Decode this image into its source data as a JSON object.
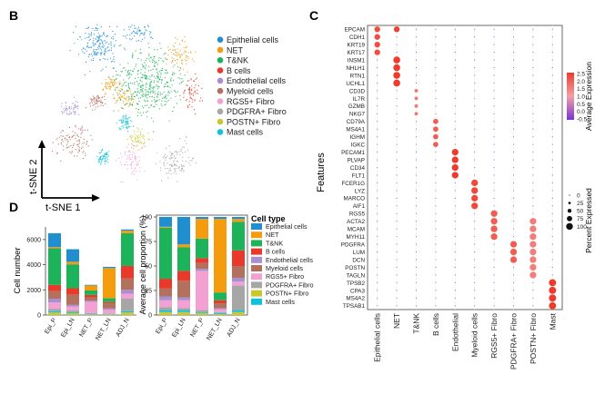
{
  "panel_labels": {
    "b": "B",
    "c": "C",
    "d": "D"
  },
  "colors": {
    "Epithelial cells": "#1f8fd0",
    "NET": "#f59b0e",
    "T&NK": "#1db35a",
    "B cells": "#e8392a",
    "Endothelial cells": "#a88fd1",
    "Myeloid cells": "#b3705c",
    "RGS5+ Fibro": "#f3a0d2",
    "PDGFRA+ Fibro": "#a6a6a6",
    "POSTN+ Fibro": "#c9c92e",
    "Mast cells": "#13c2da",
    "gradient_high": "#f03a2b",
    "gradient_low": "#7a33d6"
  },
  "chart_data": [
    {
      "type": "scatter",
      "panel": "B",
      "xlabel": "t-SNE 1",
      "ylabel": "t-SNE 2",
      "legend": [
        "Epithelial cells",
        "NET",
        "T&NK",
        "B cells",
        "Endothelial cells",
        "Myeloid cells",
        "RGS5+ Fibro",
        "PDGFRA+ Fibro",
        "POSTN+ Fibro",
        "Mast cells"
      ],
      "clusters": [
        {
          "label": "Epithelial cells",
          "cx": 0.3,
          "cy": 0.9,
          "sx": 0.09,
          "sy": 0.1
        },
        {
          "label": "Epithelial cells",
          "cx": 0.55,
          "cy": 0.97,
          "sx": 0.05,
          "sy": 0.04
        },
        {
          "label": "NET",
          "cx": 0.8,
          "cy": 0.84,
          "sx": 0.06,
          "sy": 0.06
        },
        {
          "label": "NET",
          "cx": 0.38,
          "cy": 0.66,
          "sx": 0.04,
          "sy": 0.03
        },
        {
          "label": "NET",
          "cx": 0.45,
          "cy": 0.58,
          "sx": 0.05,
          "sy": 0.04
        },
        {
          "label": "T&NK",
          "cx": 0.6,
          "cy": 0.66,
          "sx": 0.14,
          "sy": 0.14
        },
        {
          "label": "B cells",
          "cx": 0.87,
          "cy": 0.62,
          "sx": 0.04,
          "sy": 0.07
        },
        {
          "label": "Endothelial cells",
          "cx": 0.12,
          "cy": 0.52,
          "sx": 0.04,
          "sy": 0.04
        },
        {
          "label": "Myeloid cells",
          "cx": 0.13,
          "cy": 0.32,
          "sx": 0.07,
          "sy": 0.07
        },
        {
          "label": "Myeloid cells",
          "cx": 0.28,
          "cy": 0.56,
          "sx": 0.04,
          "sy": 0.03
        },
        {
          "label": "RGS5+ Fibro",
          "cx": 0.5,
          "cy": 0.22,
          "sx": 0.05,
          "sy": 0.07
        },
        {
          "label": "PDGFRA+ Fibro",
          "cx": 0.77,
          "cy": 0.2,
          "sx": 0.07,
          "sy": 0.07
        },
        {
          "label": "POSTN+ Fibro",
          "cx": 0.55,
          "cy": 0.34,
          "sx": 0.05,
          "sy": 0.04
        },
        {
          "label": "Mast cells",
          "cx": 0.33,
          "cy": 0.23,
          "sx": 0.03,
          "sy": 0.03
        },
        {
          "label": "Mast cells",
          "cx": 0.46,
          "cy": 0.43,
          "sx": 0.03,
          "sy": 0.03
        }
      ]
    },
    {
      "type": "dot",
      "panel": "C",
      "ylabel": "Features",
      "features": [
        "EPCAM",
        "CDH1",
        "KRT19",
        "KRT17",
        "INSM1",
        "NHLH1",
        "RTN1",
        "UCHL1",
        "CD3D",
        "IL7R",
        "GZMB",
        "NKG7",
        "CD79A",
        "MS4A1",
        "IGHM",
        "IGKC",
        "PECAM1",
        "PLVAP",
        "CD34",
        "FLT1",
        "FCER1G",
        "LYZ",
        "MARCO",
        "AIF1",
        "RGS5",
        "ACTA2",
        "MCAM",
        "MYH11",
        "PDGFRA",
        "LUM",
        "DCN",
        "POSTN",
        "TAGLN",
        "TPSB2",
        "CPA3",
        "MS4A2",
        "TPSAB1"
      ],
      "groups": [
        "Epithelial cells",
        "NET",
        "T&NK",
        "B cells",
        "Endothelial",
        "Myeloid cells",
        "RGS5+ Fibro",
        "PDGFRA+ Fibro",
        "POSTN+ Fibro",
        "Mast"
      ],
      "highlights": [
        {
          "group": 0,
          "features": [
            0,
            1,
            2,
            3
          ],
          "expr": 2.2,
          "pct": 70
        },
        {
          "group": 1,
          "features": [
            0
          ],
          "expr": 2.4,
          "pct": 70
        },
        {
          "group": 1,
          "features": [
            4,
            5,
            6,
            7
          ],
          "expr": 2.5,
          "pct": 90
        },
        {
          "group": 2,
          "features": [
            8,
            9,
            10,
            11
          ],
          "expr": 1.6,
          "pct": 30
        },
        {
          "group": 3,
          "features": [
            12,
            13,
            14,
            15
          ],
          "expr": 2.0,
          "pct": 60
        },
        {
          "group": 4,
          "features": [
            16,
            17,
            18,
            19
          ],
          "expr": 2.5,
          "pct": 85
        },
        {
          "group": 5,
          "features": [
            20,
            21,
            22,
            23
          ],
          "expr": 2.3,
          "pct": 85
        },
        {
          "group": 6,
          "features": [
            24,
            25,
            26,
            27
          ],
          "expr": 2.0,
          "pct": 85
        },
        {
          "group": 7,
          "features": [
            28,
            29,
            30
          ],
          "expr": 2.0,
          "pct": 85
        },
        {
          "group": 8,
          "features": [
            25,
            26,
            27,
            28,
            29,
            30,
            31,
            32
          ],
          "expr": 1.5,
          "pct": 85
        },
        {
          "group": 9,
          "features": [
            33,
            34,
            35,
            36
          ],
          "expr": 2.5,
          "pct": 95
        }
      ],
      "colorbar": {
        "title": "Average Expression",
        "ticks": [
          "2.5",
          "2.0",
          "1.5",
          "1.0",
          "0.5",
          "0.0",
          "-0.5"
        ],
        "range": [
          -0.5,
          2.5
        ]
      },
      "size_legend": {
        "title": "Percent Expressed",
        "ticks": [
          "0",
          "25",
          "50",
          "75",
          "100"
        ]
      }
    },
    {
      "type": "bar",
      "stacked": true,
      "panel": "D-left",
      "ylabel": "Cell number",
      "categories": [
        "Epi_P",
        "Epi_LN",
        "NET_P",
        "NET_LN",
        "ADJ_N"
      ],
      "ylim": [
        0,
        7000
      ],
      "yticks": [
        "0",
        "2000",
        "4000",
        "6000"
      ],
      "stack_order": [
        "POSTN+ Fibro",
        "Mast cells",
        "PDGFRA+ Fibro",
        "RGS5+ Fibro",
        "Endothelial cells",
        "Myeloid cells",
        "B cells",
        "T&NK",
        "NET",
        "Epithelial cells"
      ],
      "series": [
        {
          "name": "POSTN+ Fibro",
          "values": [
            200,
            150,
            50,
            50,
            200
          ]
        },
        {
          "name": "Mast cells",
          "values": [
            100,
            80,
            50,
            30,
            100
          ]
        },
        {
          "name": "PDGFRA+ Fibro",
          "values": [
            200,
            150,
            50,
            50,
            1000
          ]
        },
        {
          "name": "RGS5+ Fibro",
          "values": [
            500,
            300,
            900,
            300,
            400
          ]
        },
        {
          "name": "Endothelial cells",
          "values": [
            300,
            150,
            100,
            100,
            300
          ]
        },
        {
          "name": "Myeloid cells",
          "values": [
            600,
            800,
            250,
            400,
            900
          ]
        },
        {
          "name": "B cells",
          "values": [
            500,
            500,
            200,
            100,
            1000
          ]
        },
        {
          "name": "T&NK",
          "values": [
            2900,
            1900,
            350,
            300,
            2600
          ]
        },
        {
          "name": "NET",
          "values": [
            100,
            200,
            400,
            2400,
            200
          ]
        },
        {
          "name": "Epithelial cells",
          "values": [
            1100,
            1000,
            50,
            100,
            100
          ]
        }
      ]
    },
    {
      "type": "bar",
      "stacked": true,
      "panel": "D-right",
      "ylabel": "Average cell proportion (%)",
      "categories": [
        "Epi_P",
        "Epi_LN",
        "NET_P",
        "NET_LN",
        "ADJ_N"
      ],
      "ylim": [
        0,
        100
      ],
      "yticks": [
        "0",
        "25",
        "50",
        "75",
        "100"
      ],
      "stack_order": [
        "POSTN+ Fibro",
        "Mast cells",
        "PDGFRA+ Fibro",
        "RGS5+ Fibro",
        "Endothelial cells",
        "Myeloid cells",
        "B cells",
        "T&NK",
        "NET",
        "Epithelial cells"
      ],
      "series": [
        {
          "name": "POSTN+ Fibro",
          "values": [
            3,
            3,
            2,
            1,
            3
          ]
        },
        {
          "name": "Mast cells",
          "values": [
            2,
            2,
            1,
            1,
            2
          ]
        },
        {
          "name": "PDGFRA+ Fibro",
          "values": [
            3,
            2,
            2,
            1,
            25
          ]
        },
        {
          "name": "RGS5+ Fibro",
          "values": [
            7,
            8,
            40,
            3,
            4
          ]
        },
        {
          "name": "Endothelial cells",
          "values": [
            4,
            3,
            2,
            1,
            4
          ]
        },
        {
          "name": "Myeloid cells",
          "values": [
            8,
            17,
            6,
            5,
            12
          ]
        },
        {
          "name": "B cells",
          "values": [
            10,
            10,
            5,
            3,
            16
          ]
        },
        {
          "name": "T&NK",
          "values": [
            52,
            24,
            20,
            8,
            29
          ]
        },
        {
          "name": "NET",
          "values": [
            1,
            3,
            20,
            75,
            3
          ]
        },
        {
          "name": "Epithelial cells",
          "values": [
            10,
            28,
            2,
            2,
            2
          ]
        }
      ],
      "legend_title": "Cell type",
      "legend": [
        "Epithelial cells",
        "NET",
        "T&NK",
        "B cells",
        "Endothelial cells",
        "Myeloid cells",
        "RGS5+ Fibro",
        "PDGFRA+ Fibro",
        "POSTN+ Fibro",
        "Mast cells"
      ]
    }
  ]
}
